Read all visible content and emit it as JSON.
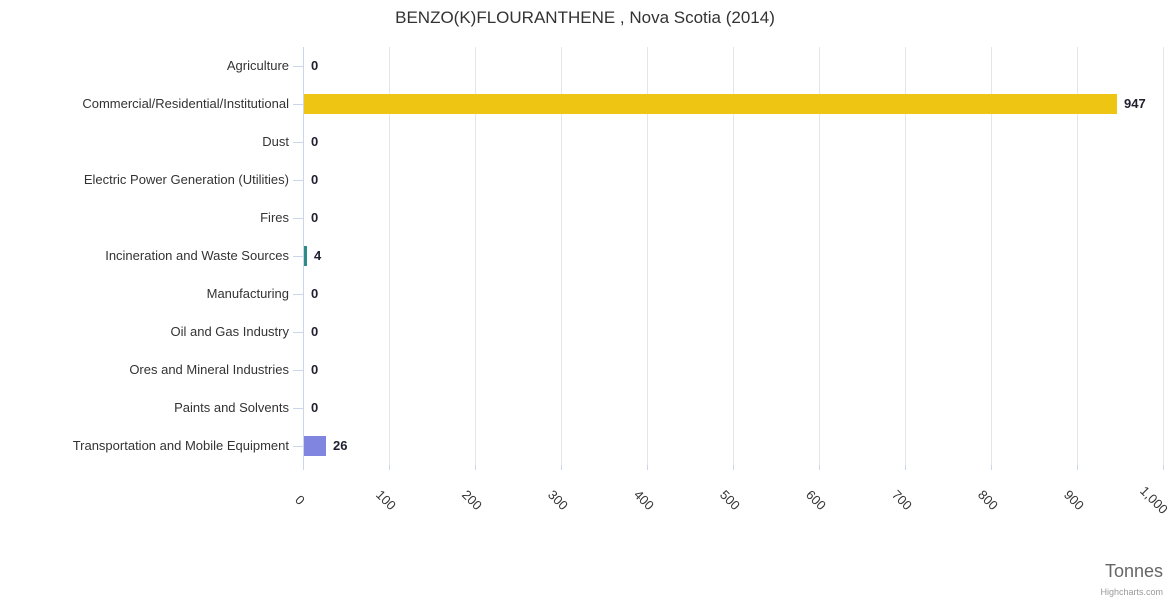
{
  "chart": {
    "title": "BENZO(K)FLOURANTHENE , Nova Scotia (2014)",
    "x_axis_title": "Tonnes",
    "credits": "Highcharts.com"
  },
  "chart_data": {
    "type": "bar",
    "orientation": "horizontal",
    "title": "BENZO(K)FLOURANTHENE , Nova Scotia (2014)",
    "xlabel": "Tonnes",
    "ylabel": "",
    "xlim": [
      0,
      1000
    ],
    "grid": true,
    "legend": false,
    "categories": [
      "Agriculture",
      "Commercial/Residential/Institutional",
      "Dust",
      "Electric Power Generation (Utilities)",
      "Fires",
      "Incineration and Waste Sources",
      "Manufacturing",
      "Oil and Gas Industry",
      "Ores and Mineral Industries",
      "Paints and Solvents",
      "Transportation and Mobile Equipment"
    ],
    "values": [
      0,
      947,
      0,
      0,
      0,
      4,
      0,
      0,
      0,
      0,
      26
    ],
    "value_labels": [
      "0",
      "947",
      "0",
      "0",
      "0",
      "4",
      "0",
      "0",
      "0",
      "0",
      "26"
    ],
    "bar_colors": [
      "",
      "#EFC513",
      "",
      "",
      "",
      "#2D8C8A",
      "",
      "",
      "",
      "",
      "#8086E0"
    ],
    "x_tick_labels": [
      "0",
      "100",
      "200",
      "300",
      "400",
      "500",
      "600",
      "700",
      "800",
      "900",
      "1,000"
    ]
  },
  "colors": {
    "axis_line": "#ccd6eb",
    "gridline": "#e6e6e6",
    "category_text": "#333333",
    "value_text": "#1f1f30",
    "tick_text": "#333333",
    "axis_title_text": "#666666",
    "credits_text": "#999999",
    "title_text": "#333333"
  }
}
